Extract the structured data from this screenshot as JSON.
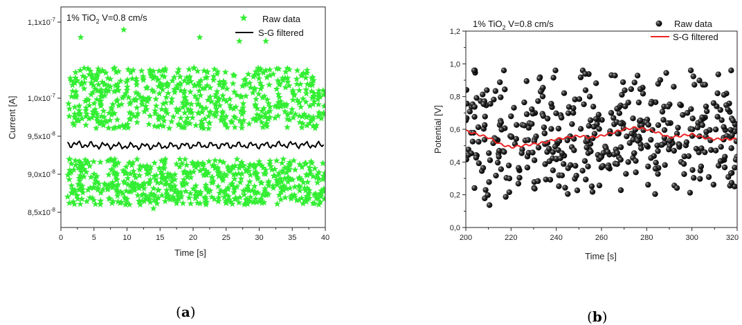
{
  "chart_data": [
    {
      "type": "scatter",
      "panel_label": "(a)",
      "annotation": {
        "text": "1% TiO",
        "sub": "2",
        "rest": " V=0.8 cm/s"
      },
      "xlabel": "Time [s]",
      "ylabel": "Current [A]",
      "xlim": [
        0,
        40
      ],
      "ylim": [
        8.3e-08,
        1.12e-07
      ],
      "xticks": [
        0,
        5,
        10,
        15,
        20,
        25,
        30,
        35,
        40
      ],
      "xtick_labels": [
        "0",
        "5",
        "10",
        "15",
        "20",
        "25",
        "30",
        "35",
        "40"
      ],
      "yticks": [
        8.5e-08,
        9e-08,
        9.5e-08,
        1e-07,
        1.1e-07
      ],
      "ytick_labels": [
        {
          "m": "8,5x10",
          "e": "-8"
        },
        {
          "m": "9,0x10",
          "e": "-8"
        },
        {
          "m": "9,5x10",
          "e": "-8"
        },
        {
          "m": "1,0x10",
          "e": "-7"
        },
        {
          "m": "1,1x10",
          "e": "-7"
        }
      ],
      "legend_position": "top-right",
      "series": [
        {
          "name": "Raw data",
          "kind": "scatter",
          "marker": "star",
          "color": "#33ee33",
          "x_range": [
            1,
            40
          ],
          "clusters": [
            [
              8.6e-08,
              9.2e-08
            ],
            [
              9.6e-08,
              1.04e-07
            ]
          ],
          "point_count": 1200
        },
        {
          "name": "S-G filtered",
          "kind": "line",
          "color": "#000000",
          "x": [
            1,
            5,
            10,
            15,
            20,
            25,
            30,
            35,
            40
          ],
          "y": [
            9.4e-08,
            9.38e-08,
            9.37e-08,
            9.37e-08,
            9.38e-08,
            9.38e-08,
            9.38e-08,
            9.39e-08,
            9.38e-08
          ]
        }
      ]
    },
    {
      "type": "scatter",
      "panel_label": "(b)",
      "annotation": {
        "text": "1% TiO",
        "sub": "2",
        "rest": " V=0.8 cm/s"
      },
      "xlabel": "Time [s]",
      "ylabel": "Potential [V]",
      "xlim": [
        200,
        320
      ],
      "ylim": [
        0,
        1.2
      ],
      "xticks": [
        200,
        220,
        240,
        260,
        280,
        300,
        320
      ],
      "xtick_labels": [
        "200",
        "220",
        "240",
        "260",
        "280",
        "300",
        "320"
      ],
      "yticks": [
        0,
        0.2,
        0.4,
        0.6,
        0.8,
        1.0,
        1.2
      ],
      "ytick_labels": [
        "0,0",
        "0,2",
        "0,4",
        "0,6",
        "0,8",
        "1,0",
        "1,2"
      ],
      "legend_position": "top-right",
      "series": [
        {
          "name": "Raw data",
          "kind": "scatter",
          "marker": "sphere",
          "color": "#000000",
          "x_range": [
            200,
            320
          ],
          "y_range": [
            0.12,
            0.96
          ],
          "point_count": 450
        },
        {
          "name": "S-G filtered",
          "kind": "line",
          "color": "#ee2222",
          "x": [
            200,
            205,
            210,
            215,
            220,
            225,
            230,
            235,
            240,
            245,
            250,
            255,
            260,
            265,
            270,
            275,
            280,
            285,
            290,
            295,
            300,
            305,
            310,
            315,
            320
          ],
          "y": [
            0.59,
            0.57,
            0.55,
            0.51,
            0.49,
            0.5,
            0.51,
            0.52,
            0.54,
            0.55,
            0.56,
            0.55,
            0.56,
            0.58,
            0.6,
            0.61,
            0.6,
            0.58,
            0.55,
            0.56,
            0.57,
            0.55,
            0.54,
            0.54,
            0.54
          ]
        }
      ]
    }
  ]
}
